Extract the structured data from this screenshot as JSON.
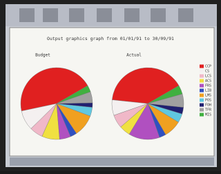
{
  "header": {
    "title": "Output graphics graph from 01/01/91 to 30/09/91"
  },
  "chart_data": [
    {
      "type": "pie",
      "title": "Budget",
      "categories": [
        "CCP",
        "CS",
        "LCS",
        "ACS",
        "FRS",
        "LIB",
        "LMS",
        "POS",
        "FOH",
        "TFR",
        "MIS"
      ],
      "values": [
        45,
        9,
        6,
        8,
        5,
        3,
        10,
        4,
        2,
        5,
        3
      ],
      "colors": [
        "#e02020",
        "#f4f0f0",
        "#f0b8c8",
        "#f0e040",
        "#b050c0",
        "#3050c0",
        "#f0a020",
        "#60c8e0",
        "#202070",
        "#a0a0a0",
        "#40b040"
      ]
    },
    {
      "type": "pie",
      "title": "Actual",
      "categories": [
        "CCP",
        "CS",
        "LCS",
        "ACS",
        "FRS",
        "LIB",
        "LMS",
        "POS",
        "FOH",
        "TFR",
        "MIS"
      ],
      "values": [
        40,
        7,
        6,
        5,
        14,
        3,
        8,
        4,
        3,
        6,
        4
      ],
      "colors": [
        "#e02020",
        "#f4f0f0",
        "#f0b8c8",
        "#f0e040",
        "#b050c0",
        "#3050c0",
        "#f0a020",
        "#60c8e0",
        "#202070",
        "#a0a0a0",
        "#40b040"
      ]
    }
  ]
}
